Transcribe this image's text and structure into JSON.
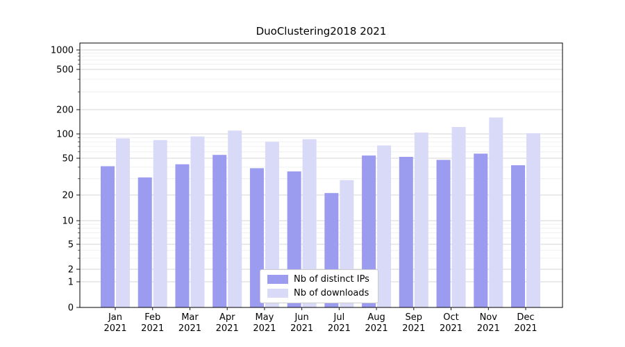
{
  "title": "DuoClustering2018 2021",
  "chart_data": {
    "type": "bar",
    "title": "DuoClustering2018 2021",
    "yscale": "symlog",
    "grid": true,
    "legend_position": "lower center",
    "x_tick_year": "2021",
    "categories": [
      "Jan",
      "Feb",
      "Mar",
      "Apr",
      "May",
      "Jun",
      "Jul",
      "Aug",
      "Sep",
      "Oct",
      "Nov",
      "Dec"
    ],
    "yticks": [
      0,
      1,
      2,
      5,
      10,
      20,
      50,
      100,
      200,
      500,
      1000
    ],
    "ylim": [
      0,
      1300
    ],
    "series": [
      {
        "name": "Nb of distinct IPs",
        "color": "#9b9bef",
        "values": [
          41,
          31,
          43,
          55,
          39,
          36,
          21,
          54,
          52,
          48,
          57,
          42
        ]
      },
      {
        "name": "Nb of downloads",
        "color": "#d9d9f8",
        "values": [
          88,
          84,
          93,
          110,
          80,
          86,
          29,
          72,
          104,
          122,
          160,
          102
        ]
      }
    ]
  }
}
